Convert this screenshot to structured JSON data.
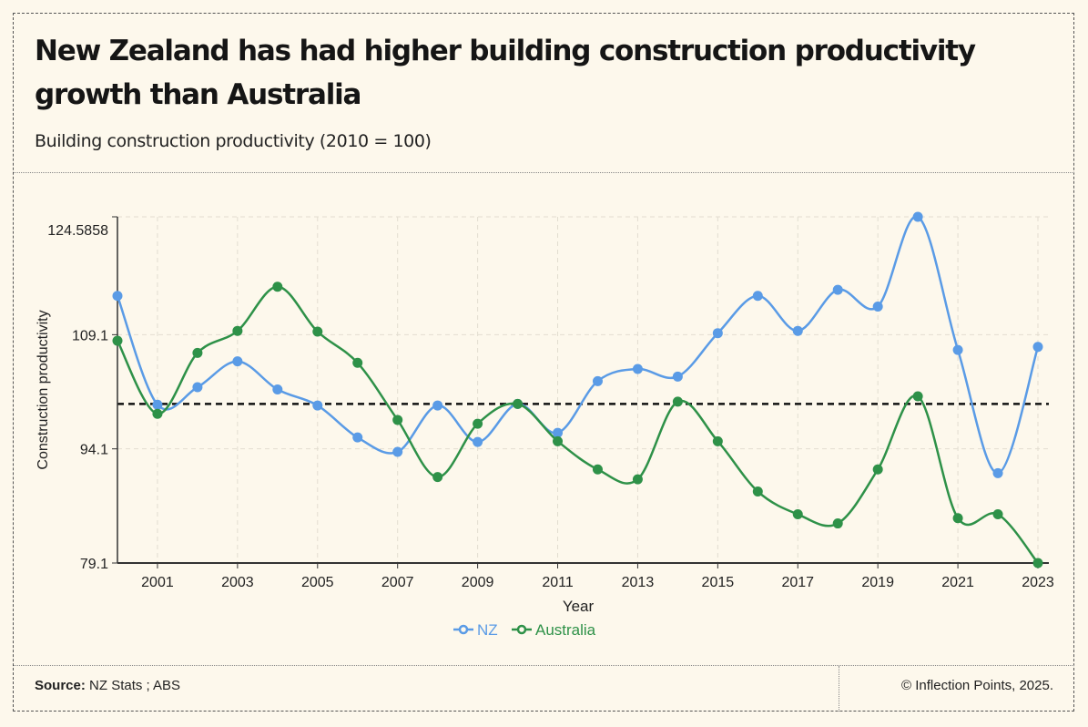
{
  "title": "New Zealand has had higher building construction productivity growth than Australia",
  "subtitle": "Building construction productivity (2010 = 100)",
  "footer": {
    "source_label": "Source:",
    "source_text": "NZ Stats ; ABS",
    "copyright": "© Inflection Points, 2025."
  },
  "chart_data": {
    "type": "line",
    "xlabel": "Year",
    "ylabel": "Construction productivity",
    "x": [
      2000,
      2001,
      2002,
      2003,
      2004,
      2005,
      2006,
      2007,
      2008,
      2009,
      2010,
      2011,
      2012,
      2013,
      2014,
      2015,
      2016,
      2017,
      2018,
      2019,
      2020,
      2021,
      2022,
      2023
    ],
    "xticks": [
      "2001",
      "2003",
      "2005",
      "2007",
      "2009",
      "2011",
      "2013",
      "2015",
      "2017",
      "2019",
      "2021",
      "2023"
    ],
    "yticks": [
      "79.1",
      "94.1",
      "109.1",
      "124.5858"
    ],
    "ylim": [
      79.1,
      124.5858
    ],
    "xlim": [
      2000,
      2023
    ],
    "reference_line": 100,
    "grid": true,
    "legend_position": "bottom-center",
    "series": [
      {
        "name": "NZ",
        "color": "#5a9be6",
        "values": [
          114.2,
          99.9,
          102.2,
          105.6,
          101.9,
          99.8,
          95.6,
          93.7,
          99.8,
          95.0,
          100,
          96.2,
          103.0,
          104.6,
          103.6,
          109.3,
          114.2,
          109.6,
          115.0,
          112.8,
          124.59,
          107.1,
          90.9,
          107.5
        ]
      },
      {
        "name": "Australia",
        "color": "#2e9148",
        "values": [
          108.3,
          98.7,
          106.7,
          109.6,
          115.4,
          109.5,
          105.4,
          97.9,
          90.4,
          97.4,
          100,
          95.1,
          91.4,
          90.1,
          100.3,
          95.1,
          88.5,
          85.5,
          84.3,
          91.4,
          101.0,
          85.0,
          85.5,
          79.1
        ]
      }
    ]
  }
}
